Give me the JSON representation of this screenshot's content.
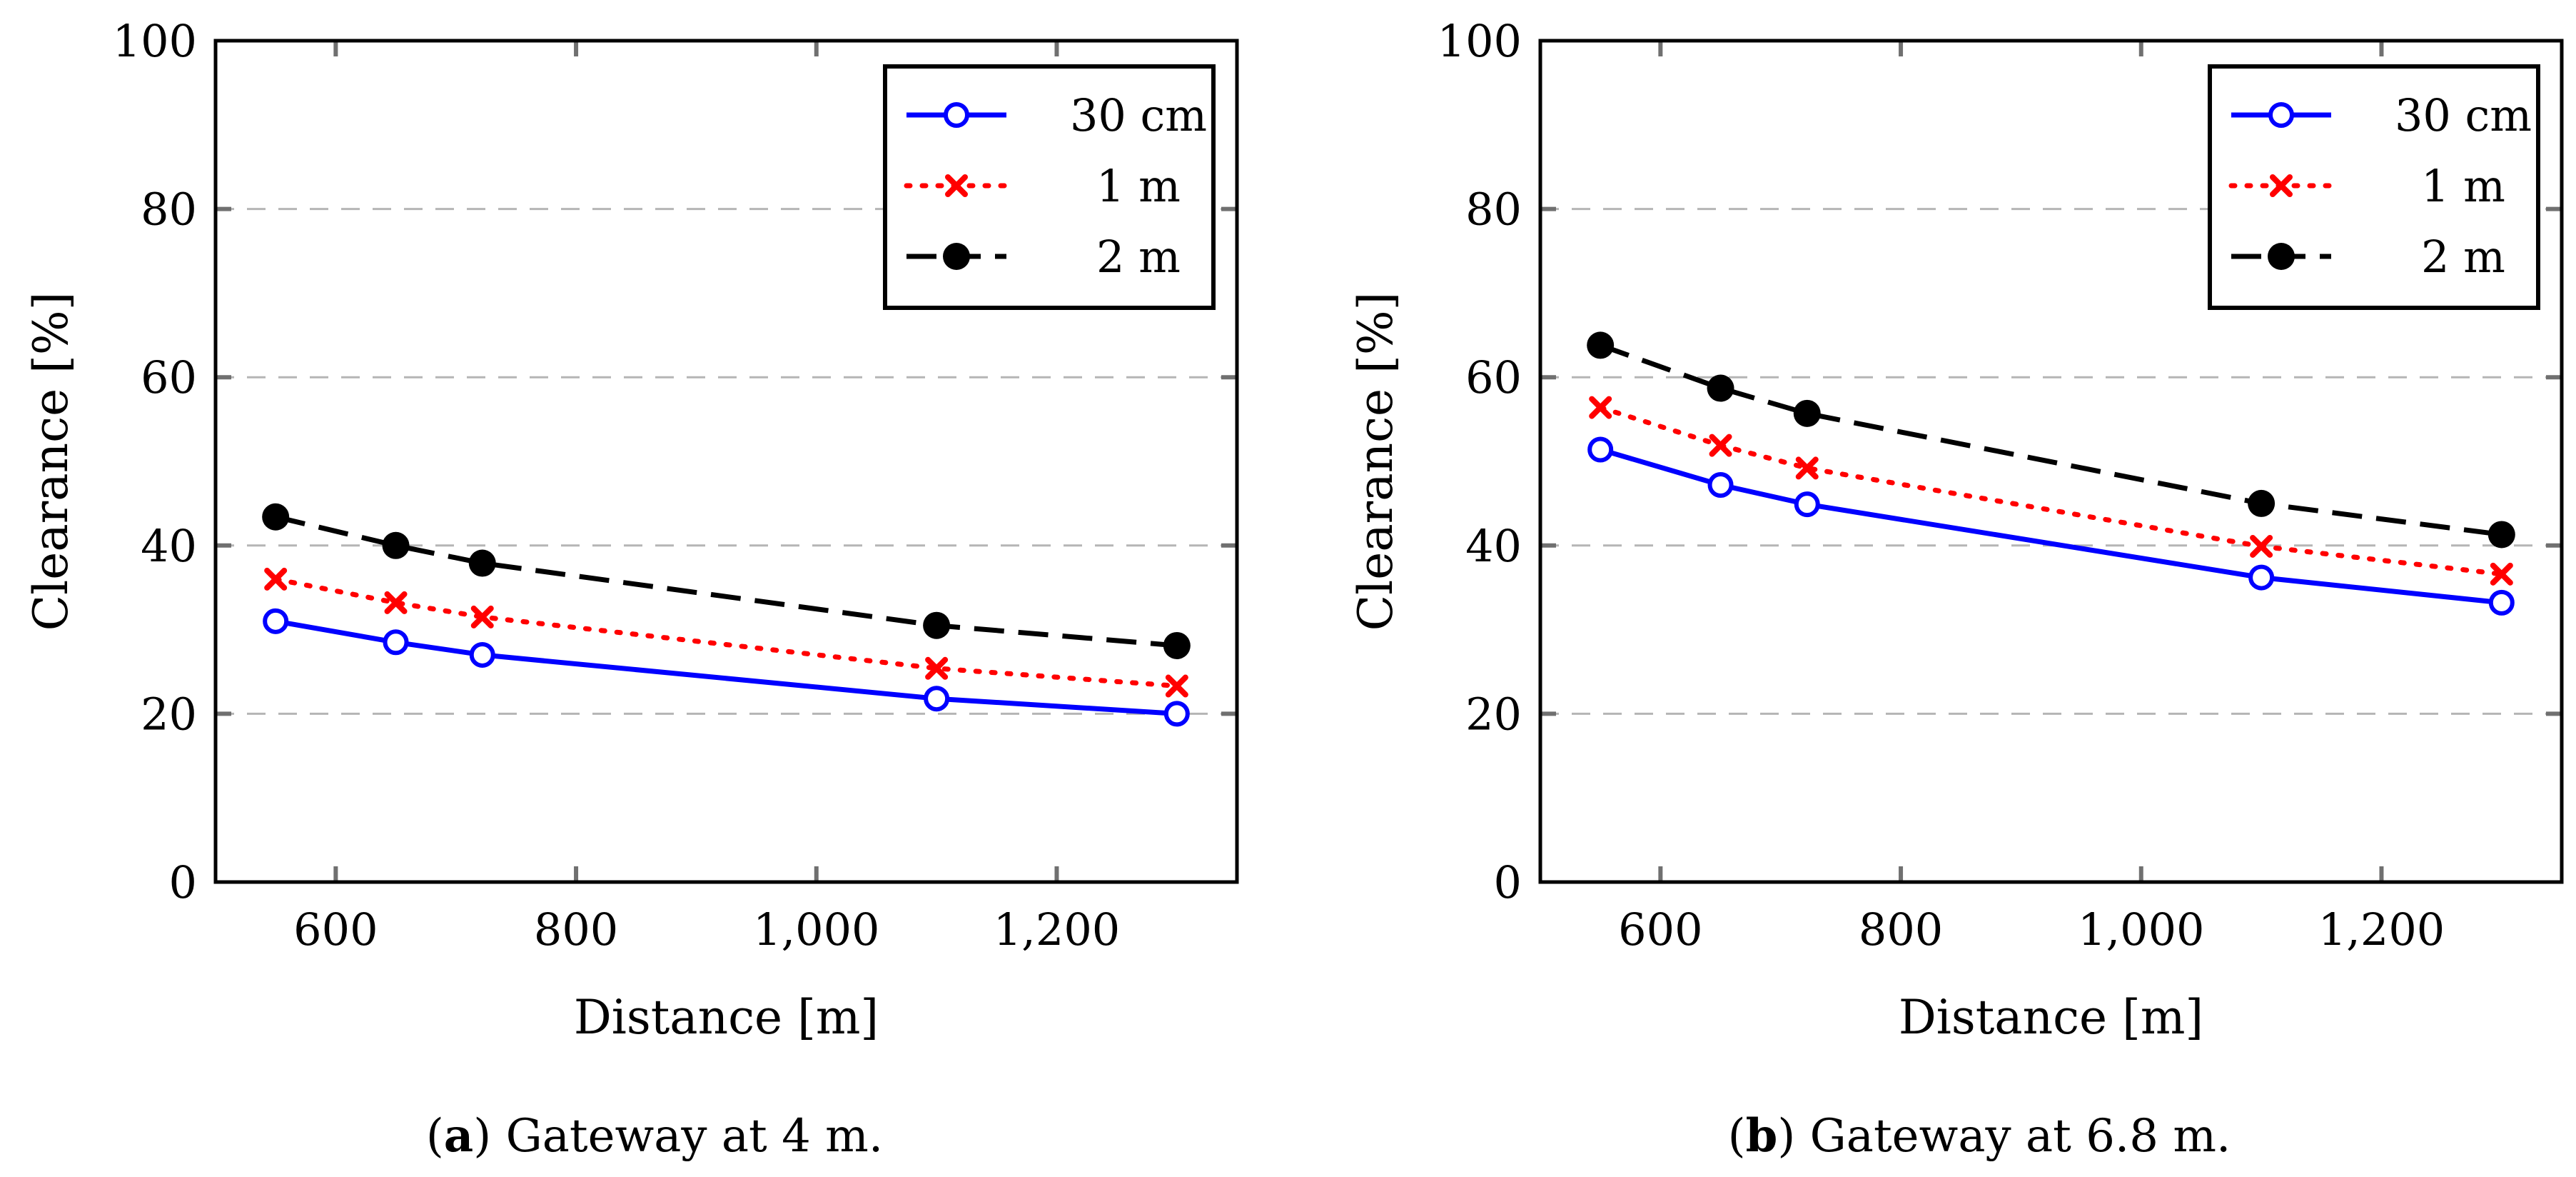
{
  "chart_data": [
    {
      "type": "line",
      "caption_letter": "a",
      "caption_text": "Gateway at 4 m.",
      "xlabel": "Distance [m]",
      "ylabel": "Clearance [%]",
      "xlim": [
        500,
        1350
      ],
      "ylim": [
        0,
        100
      ],
      "xticks": [
        600,
        800,
        1000,
        1200
      ],
      "xtick_labels": [
        "600",
        "800",
        "1,000",
        "1,200"
      ],
      "yticks": [
        0,
        20,
        40,
        60,
        80,
        100
      ],
      "ytick_labels": [
        "0",
        "20",
        "40",
        "60",
        "80",
        "100"
      ],
      "grid": "horizontal dashed",
      "legend_position": "top-right",
      "x": [
        550,
        650,
        722,
        1100,
        1300
      ],
      "series": [
        {
          "name": "30 cm",
          "values": [
            31.0,
            28.5,
            27.0,
            21.8,
            20.0
          ],
          "color": "#0000ff",
          "dash": "solid",
          "marker": "open-circle"
        },
        {
          "name": "1 m",
          "values": [
            36.0,
            33.2,
            31.5,
            25.4,
            23.3
          ],
          "color": "#ff0000",
          "dash": "dotted",
          "marker": "cross"
        },
        {
          "name": "2 m",
          "values": [
            43.4,
            40.0,
            37.9,
            30.5,
            28.1
          ],
          "color": "#000000",
          "dash": "dashed",
          "marker": "filled-circle"
        }
      ]
    },
    {
      "type": "line",
      "caption_letter": "b",
      "caption_text": "Gateway at 6.8 m.",
      "xlabel": "Distance [m]",
      "ylabel": "Clearance [%]",
      "xlim": [
        500,
        1350
      ],
      "ylim": [
        0,
        100
      ],
      "xticks": [
        600,
        800,
        1000,
        1200
      ],
      "xtick_labels": [
        "600",
        "800",
        "1,000",
        "1,200"
      ],
      "yticks": [
        0,
        20,
        40,
        60,
        80,
        100
      ],
      "ytick_labels": [
        "0",
        "20",
        "40",
        "60",
        "80",
        "100"
      ],
      "grid": "horizontal dashed",
      "legend_position": "top-right",
      "x": [
        550,
        650,
        722,
        1100,
        1300
      ],
      "series": [
        {
          "name": "30 cm",
          "values": [
            51.4,
            47.2,
            44.9,
            36.2,
            33.2
          ],
          "color": "#0000ff",
          "dash": "solid",
          "marker": "open-circle"
        },
        {
          "name": "1 m",
          "values": [
            56.4,
            51.9,
            49.2,
            39.9,
            36.6
          ],
          "color": "#ff0000",
          "dash": "dotted",
          "marker": "cross"
        },
        {
          "name": "2 m",
          "values": [
            63.8,
            58.7,
            55.7,
            45.0,
            41.3
          ],
          "color": "#000000",
          "dash": "dashed",
          "marker": "filled-circle"
        }
      ]
    }
  ]
}
